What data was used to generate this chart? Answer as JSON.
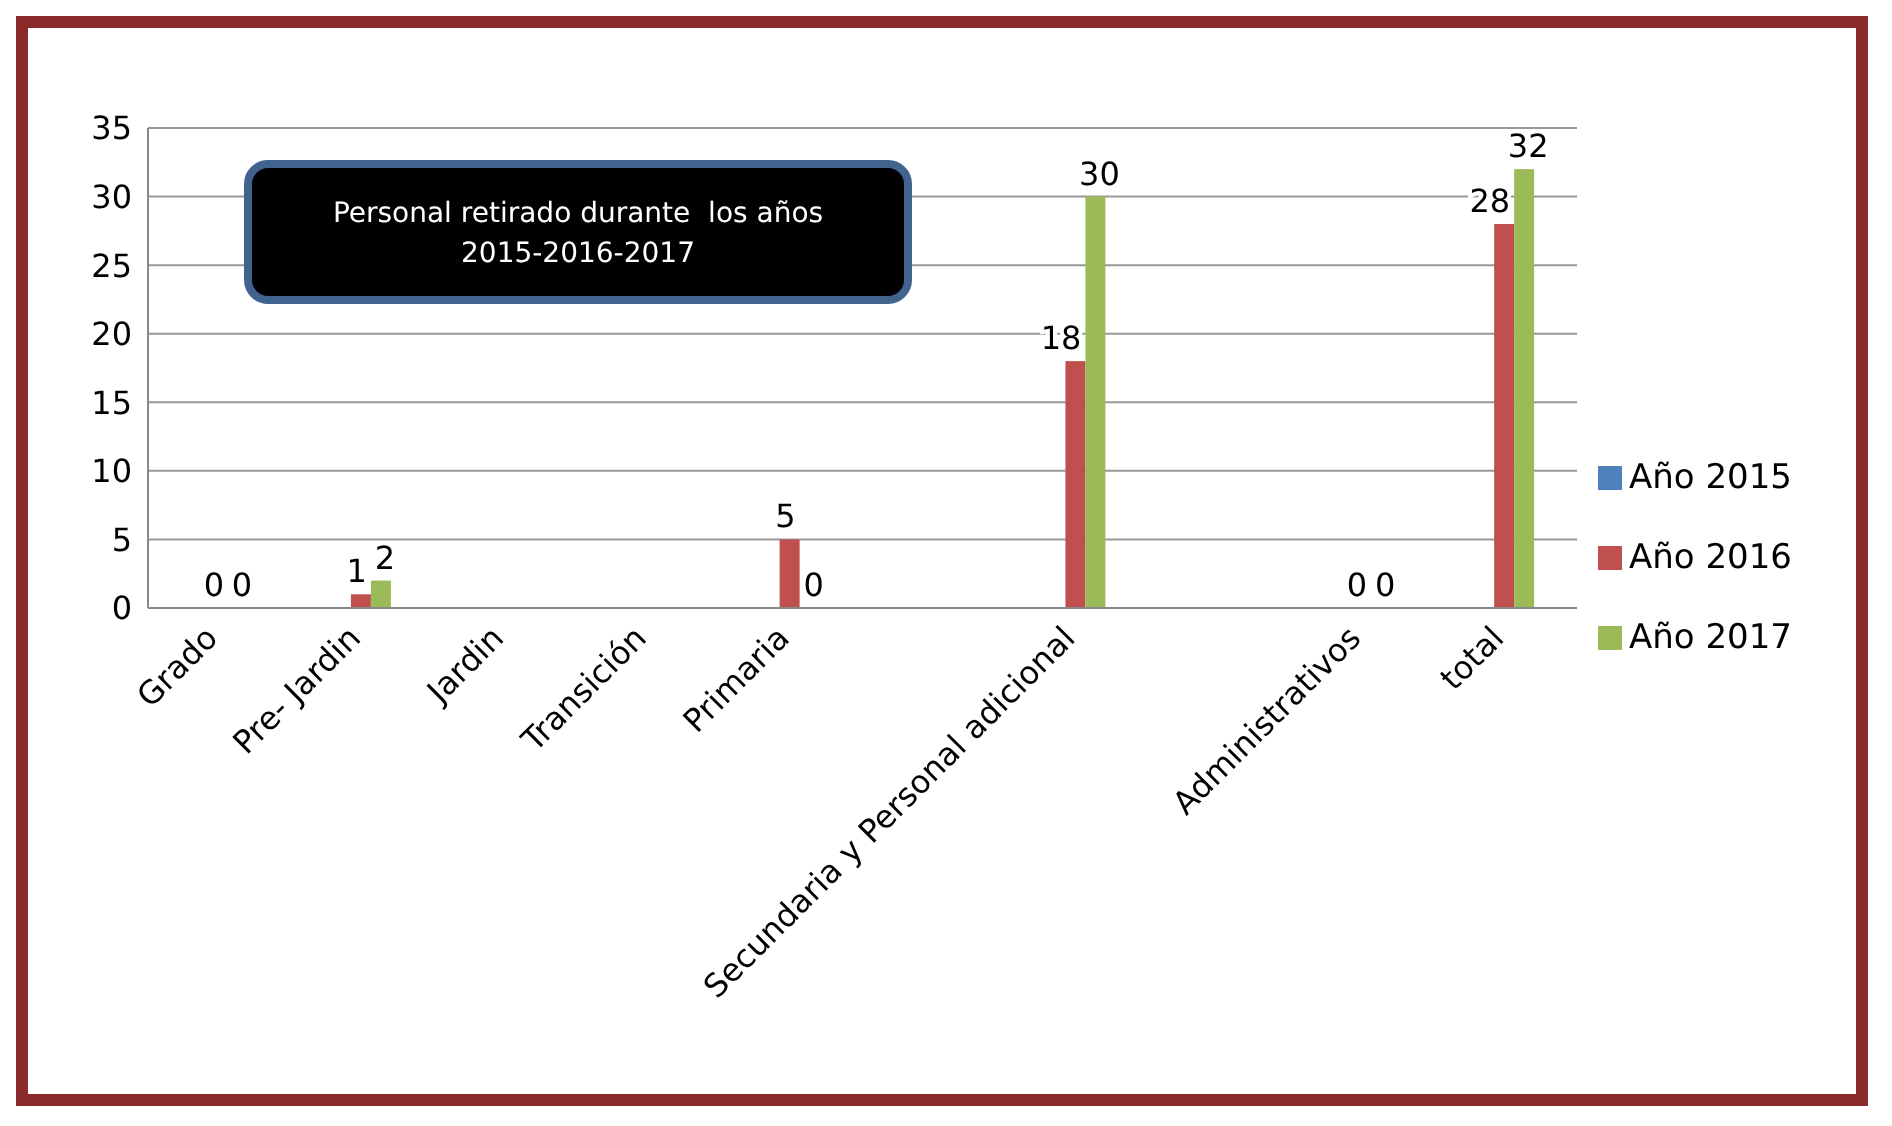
{
  "chart_data": {
    "type": "bar",
    "title": "Personal retirado durante  los años\n2015-2016-2017",
    "categories": [
      "Grado",
      "Pre- Jardin",
      "Jardin",
      "Transición",
      "Primaria",
      null,
      "Secundaria y Personal adicional",
      null,
      "Administrativos",
      "total"
    ],
    "series": [
      {
        "name": "Año 2015",
        "color": "#4f81bd",
        "values": [
          null,
          null,
          null,
          null,
          null,
          null,
          null,
          null,
          null,
          null
        ]
      },
      {
        "name": "Año 2016",
        "color": "#c0504d",
        "values": [
          0,
          1,
          null,
          null,
          5,
          null,
          18,
          null,
          0,
          28
        ],
        "value_labels": [
          "0",
          "1",
          null,
          null,
          "5",
          null,
          "18",
          null,
          "0",
          "28"
        ]
      },
      {
        "name": "Año 2017",
        "color": "#9bbb59",
        "values": [
          0,
          2,
          null,
          null,
          0,
          null,
          30,
          null,
          0,
          32
        ],
        "value_labels": [
          "0",
          "2",
          null,
          null,
          "0",
          null,
          "30",
          null,
          "0",
          "32"
        ]
      }
    ],
    "ylim": [
      0,
      35
    ],
    "yticks": [
      0,
      5,
      10,
      15,
      20,
      25,
      30,
      35
    ],
    "grid": "y",
    "legend": "right"
  }
}
